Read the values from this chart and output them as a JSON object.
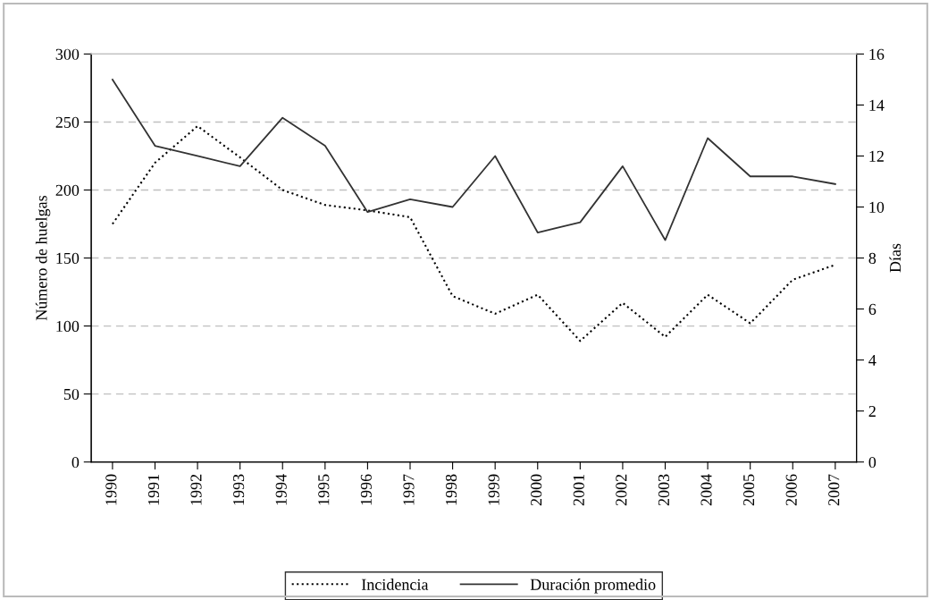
{
  "chart_data": {
    "type": "line",
    "ylabel": "Número de huelgas",
    "y2label": "Días",
    "categories": [
      "1990",
      "1991",
      "1992",
      "1993",
      "1994",
      "1995",
      "1996",
      "1997",
      "1998",
      "1999",
      "2000",
      "2001",
      "2002",
      "2003",
      "2004",
      "2005",
      "2006",
      "2007"
    ],
    "series": [
      {
        "name": "Incidencia",
        "color": "#000000",
        "line_style": "dotted",
        "values": [
          175,
          220,
          247,
          224,
          200,
          189,
          185,
          180,
          122,
          109,
          123,
          89,
          117,
          92,
          123,
          102,
          134,
          145
        ]
      },
      {
        "name": "Duración promedio",
        "color": "#333333",
        "line_style": "solid",
        "axis": "y2",
        "values": [
          15.0,
          12.4,
          12.0,
          11.6,
          13.5,
          12.4,
          9.8,
          10.3,
          10.0,
          12.0,
          9.0,
          9.4,
          11.6,
          8.7,
          12.7,
          11.2,
          11.2,
          10.9
        ]
      }
    ],
    "ylim": [
      0,
      300
    ],
    "yticks": [
      0,
      50,
      100,
      150,
      200,
      250,
      300
    ],
    "y2lim": [
      0,
      16
    ],
    "y2ticks": [
      0,
      2,
      4,
      6,
      8,
      10,
      12,
      14,
      16
    ],
    "grid": "y",
    "legend": "bottom",
    "marker": "none"
  }
}
